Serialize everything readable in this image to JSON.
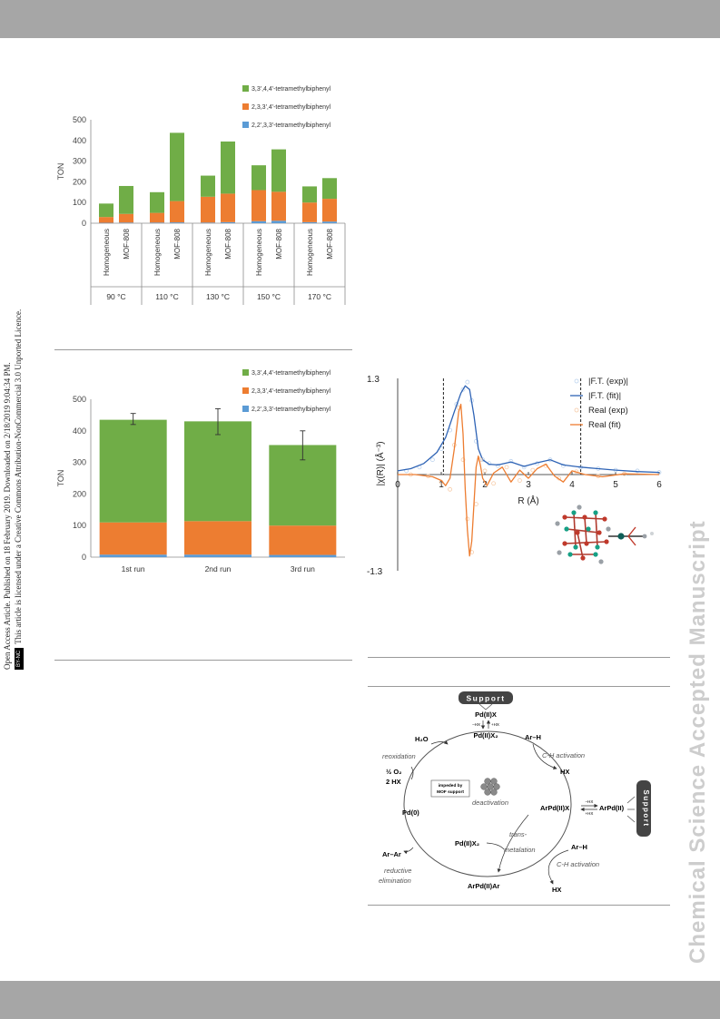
{
  "page": {
    "watermark": "Chemical Science Accepted Manuscript",
    "notice_line1": "Open Access Article. Published on 18 February 2019. Downloaded on 2/18/2019 9:04:34 PM.",
    "notice_line2": "This article is licensed under a Creative Commons Attribution-NonCommercial 3.0 Unported Licence.",
    "cc_badge": "BY-NC"
  },
  "chart_data": [
    {
      "type": "bar",
      "stacked": true,
      "ylabel": "TON",
      "ylim": [
        0,
        500
      ],
      "yticks": [
        "0",
        "100",
        "200",
        "300",
        "400",
        "500"
      ],
      "categories": [
        "Homogeneous",
        "MOF-808",
        "Homogeneous",
        "MOF-808",
        "Homogeneous",
        "MOF-808",
        "Homogeneous",
        "MOF-808",
        "Homogeneous",
        "MOF-808"
      ],
      "groups": [
        "90 °C",
        "110 °C",
        "130 °C",
        "150 °C",
        "170 °C"
      ],
      "legend_position": "top-right",
      "series": [
        {
          "name": "2,2',3,3'-tetramethylbiphenyl",
          "color": "#5b9bd5",
          "values": [
            2,
            3,
            3,
            4,
            3,
            5,
            10,
            12,
            5,
            8
          ]
        },
        {
          "name": "2,3,3',4'-tetramethylbiphenyl",
          "color": "#ed7d31",
          "values": [
            28,
            42,
            47,
            103,
            125,
            138,
            150,
            140,
            95,
            110
          ]
        },
        {
          "name": "3,3',4,4'-tetramethylbiphenyl",
          "color": "#70ad47",
          "values": [
            65,
            135,
            100,
            330,
            102,
            252,
            120,
            205,
            78,
            100
          ]
        }
      ]
    },
    {
      "type": "bar",
      "stacked": true,
      "ylabel": "TON",
      "ylim": [
        0,
        500
      ],
      "yticks": [
        "0",
        "100",
        "200",
        "300",
        "400",
        "500"
      ],
      "categories": [
        "1st run",
        "2nd run",
        "3rd run"
      ],
      "legend_position": "top-right",
      "error_bars": [
        {
          "low": 420,
          "high": 455
        },
        {
          "low": 388,
          "high": 470
        },
        {
          "low": 308,
          "high": 400
        }
      ],
      "series": [
        {
          "name": "2,2',3,3'-tetramethylbiphenyl",
          "color": "#5b9bd5",
          "values": [
            8,
            8,
            7
          ]
        },
        {
          "name": "2,3,3',4'-tetramethylbiphenyl",
          "color": "#ed7d31",
          "values": [
            102,
            106,
            93
          ]
        },
        {
          "name": "3,3',4,4'-tetramethylbiphenyl",
          "color": "#70ad47",
          "values": [
            325,
            316,
            255
          ]
        }
      ]
    },
    {
      "type": "line",
      "xlabel": "R (Å)",
      "ylabel": "|χ(R)| (Å⁻³)",
      "xlim": [
        0,
        6
      ],
      "ylim": [
        -1.3,
        1.3
      ],
      "xticks": [
        "0",
        "1",
        "2",
        "3",
        "4",
        "5",
        "6"
      ],
      "ytick_top": "1.3",
      "ytick_bottom": "-1.3",
      "fit_window": [
        1.05,
        4.2
      ],
      "legend_position": "top-right",
      "series": [
        {
          "name": "|F.T. (exp)|",
          "color": "#bcd3ee",
          "style": "markers",
          "x": [
            0.2,
            0.5,
            0.8,
            1.0,
            1.2,
            1.35,
            1.5,
            1.6,
            1.7,
            1.8,
            1.95,
            2.1,
            2.3,
            2.6,
            2.9,
            3.2,
            3.5,
            3.8,
            4.2,
            4.6,
            5.0,
            5.5,
            6.0
          ],
          "y": [
            0.05,
            0.1,
            0.2,
            0.35,
            0.6,
            0.95,
            1.15,
            1.25,
            1.0,
            0.45,
            0.2,
            0.15,
            0.12,
            0.18,
            0.1,
            0.15,
            0.2,
            0.12,
            0.1,
            0.08,
            0.06,
            0.05,
            0.03
          ]
        },
        {
          "name": "|F.T. (fit)|",
          "color": "#2e63b5",
          "style": "line",
          "x": [
            0.0,
            0.3,
            0.6,
            0.9,
            1.1,
            1.3,
            1.45,
            1.55,
            1.65,
            1.75,
            1.85,
            1.95,
            2.1,
            2.3,
            2.6,
            2.9,
            3.2,
            3.5,
            3.8,
            4.2,
            4.6,
            5.0,
            5.5,
            6.0
          ],
          "y": [
            0.05,
            0.08,
            0.15,
            0.3,
            0.5,
            0.85,
            1.1,
            1.2,
            1.15,
            0.8,
            0.35,
            0.2,
            0.14,
            0.13,
            0.17,
            0.11,
            0.16,
            0.2,
            0.13,
            0.1,
            0.08,
            0.06,
            0.04,
            0.03
          ]
        },
        {
          "name": "Real (exp)",
          "color": "#f7cba7",
          "style": "markers",
          "x": [
            0.3,
            0.7,
            1.0,
            1.2,
            1.3,
            1.4,
            1.5,
            1.6,
            1.7,
            1.8,
            1.9,
            2.0,
            2.2,
            2.5,
            2.8,
            3.1,
            3.4,
            3.7,
            4.1,
            4.6,
            5.2
          ],
          "y": [
            0.0,
            -0.02,
            -0.1,
            -0.2,
            0.4,
            0.9,
            0.2,
            -0.6,
            -1.05,
            -0.4,
            0.2,
            0.05,
            -0.12,
            0.1,
            -0.08,
            0.06,
            0.12,
            -0.05,
            0.04,
            -0.02,
            0.01
          ]
        },
        {
          "name": "Real (fit)",
          "color": "#ed7d31",
          "style": "line",
          "x": [
            0.0,
            0.4,
            0.8,
            1.0,
            1.1,
            1.2,
            1.3,
            1.4,
            1.45,
            1.5,
            1.55,
            1.6,
            1.65,
            1.7,
            1.75,
            1.8,
            1.85,
            1.9,
            1.95,
            2.05,
            2.2,
            2.4,
            2.6,
            2.8,
            3.0,
            3.2,
            3.4,
            3.6,
            3.8,
            4.0,
            4.3,
            4.7,
            5.2,
            6.0
          ],
          "y": [
            0.0,
            0.0,
            -0.03,
            -0.08,
            -0.15,
            -0.05,
            0.35,
            0.85,
            0.95,
            0.55,
            -0.2,
            -0.75,
            -1.1,
            -0.9,
            -0.4,
            0.1,
            0.25,
            0.12,
            -0.05,
            -0.15,
            0.02,
            0.1,
            -0.1,
            0.06,
            -0.05,
            0.08,
            0.14,
            -0.02,
            -0.1,
            0.05,
            0.0,
            -0.03,
            0.01,
            0.0
          ]
        }
      ]
    }
  ],
  "diagram": {
    "support_label": "Support",
    "pd_ii_x": "Pd(II)X",
    "minus_hx": "–HX",
    "plus_hx": "+HX",
    "pd_ii_x2_top": "Pd(II)X₂",
    "h2o": "H₂O",
    "reoxidation": "reoxidation",
    "half_o2": "½ O₂",
    "two_hx": "2 HX",
    "impeded_line1": "impeded by",
    "impeded_line2": "MOF support",
    "deactivation": "deactivation",
    "pd0": "Pd(0)",
    "ar_h_top": "Ar–H",
    "ch_activation_top": "C-H activation",
    "hx_top": "HX",
    "arpd_ii_x": "ArPd(II)X",
    "hx_right_top": "–HX",
    "hx_right_bottom": "+HX",
    "arpd_ii": "ArPd(II)",
    "support_label_right": "Support",
    "pd_ii_x2_mid": "Pd(II)X₂",
    "trans": "trans-",
    "metalation": "metalation",
    "ar_h_bottom": "Ar–H",
    "ch_activation_bottom": "C-H activation",
    "hx_bottom": "HX",
    "ar_ar": "Ar–Ar",
    "reductive": "reductive",
    "elimination": "elimination",
    "arpd_ii_ar": "ArPd(II)Ar"
  }
}
